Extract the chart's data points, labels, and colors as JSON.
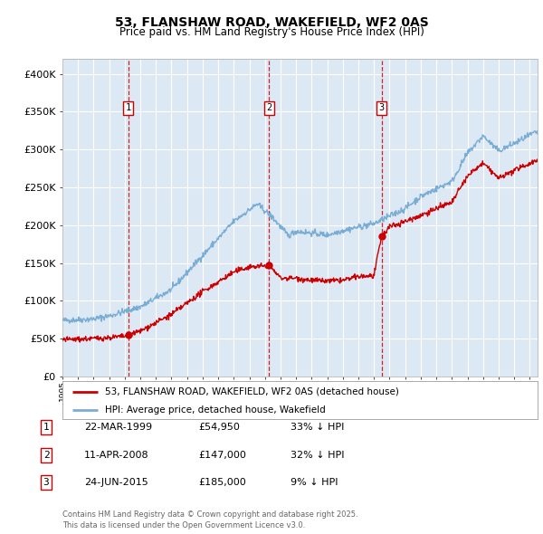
{
  "title": "53, FLANSHAW ROAD, WAKEFIELD, WF2 0AS",
  "subtitle": "Price paid vs. HM Land Registry's House Price Index (HPI)",
  "fig_bg_color": "#ffffff",
  "plot_bg_color": "#dde8f5",
  "ylim": [
    0,
    420000
  ],
  "yticks": [
    0,
    50000,
    100000,
    150000,
    200000,
    250000,
    300000,
    350000,
    400000
  ],
  "ytick_labels": [
    "£0",
    "£50K",
    "£100K",
    "£150K",
    "£200K",
    "£250K",
    "£300K",
    "£350K",
    "£400K"
  ],
  "sale_dates_num": [
    1999.22,
    2008.27,
    2015.48
  ],
  "sale_prices": [
    54950,
    147000,
    185000
  ],
  "sale_labels": [
    "1",
    "2",
    "3"
  ],
  "legend_red": "53, FLANSHAW ROAD, WAKEFIELD, WF2 0AS (detached house)",
  "legend_blue": "HPI: Average price, detached house, Wakefield",
  "table_rows": [
    [
      "1",
      "22-MAR-1999",
      "£54,950",
      "33% ↓ HPI"
    ],
    [
      "2",
      "11-APR-2008",
      "£147,000",
      "32% ↓ HPI"
    ],
    [
      "3",
      "24-JUN-2015",
      "£185,000",
      "9% ↓ HPI"
    ]
  ],
  "footer": "Contains HM Land Registry data © Crown copyright and database right 2025.\nThis data is licensed under the Open Government Licence v3.0.",
  "red_color": "#cc0000",
  "blue_color": "#7aadd4",
  "grid_color": "#ffffff",
  "dashed_color": "#cc0000",
  "xstart": 1995,
  "xend": 2025.5
}
